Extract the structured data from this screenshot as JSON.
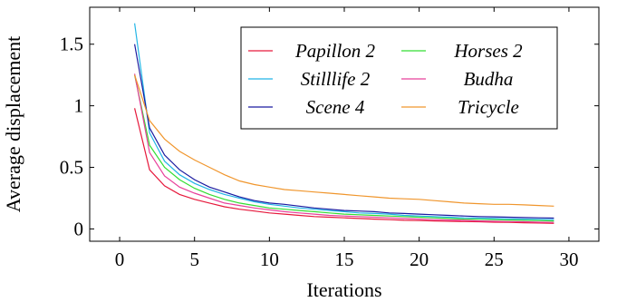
{
  "chart_data": {
    "type": "line",
    "xlabel": "Iterations",
    "ylabel": "Average displacement",
    "xlim": [
      -2,
      32
    ],
    "ylim": [
      -0.1,
      1.8
    ],
    "xticks": [
      0,
      5,
      10,
      15,
      20,
      25,
      30
    ],
    "yticks": [
      0,
      0.5,
      1,
      1.5
    ],
    "ytick_labels": [
      "0",
      "0.5",
      "1",
      "1.5"
    ],
    "grid": false,
    "legend_position": "top-right",
    "x": [
      1,
      2,
      3,
      4,
      5,
      6,
      7,
      8,
      9,
      10,
      11,
      12,
      13,
      14,
      15,
      16,
      17,
      18,
      19,
      20,
      21,
      22,
      23,
      24,
      25,
      26,
      27,
      28,
      29
    ],
    "series": [
      {
        "name": "Papillon 2",
        "color": "#e6193c",
        "values": [
          0.98,
          0.48,
          0.35,
          0.28,
          0.24,
          0.21,
          0.18,
          0.16,
          0.145,
          0.13,
          0.12,
          0.11,
          0.1,
          0.095,
          0.09,
          0.085,
          0.08,
          0.075,
          0.07,
          0.068,
          0.065,
          0.062,
          0.06,
          0.058,
          0.055,
          0.053,
          0.05,
          0.048,
          0.045
        ]
      },
      {
        "name": "Horses 2",
        "color": "#33dd33",
        "values": [
          1.25,
          0.68,
          0.5,
          0.4,
          0.33,
          0.28,
          0.24,
          0.21,
          0.19,
          0.17,
          0.16,
          0.15,
          0.14,
          0.13,
          0.12,
          0.115,
          0.11,
          0.105,
          0.1,
          0.095,
          0.09,
          0.085,
          0.08,
          0.078,
          0.075,
          0.072,
          0.07,
          0.068,
          0.065
        ]
      },
      {
        "name": "Stilllife 2",
        "color": "#22b5e6",
        "values": [
          1.67,
          0.78,
          0.55,
          0.44,
          0.37,
          0.32,
          0.28,
          0.25,
          0.22,
          0.2,
          0.185,
          0.17,
          0.16,
          0.15,
          0.14,
          0.13,
          0.125,
          0.12,
          0.11,
          0.105,
          0.1,
          0.095,
          0.09,
          0.088,
          0.085,
          0.082,
          0.08,
          0.078,
          0.075
        ]
      },
      {
        "name": "Budha",
        "color": "#e8409a",
        "values": [
          1.26,
          0.62,
          0.43,
          0.34,
          0.29,
          0.25,
          0.21,
          0.19,
          0.17,
          0.155,
          0.14,
          0.13,
          0.12,
          0.11,
          0.105,
          0.1,
          0.095,
          0.09,
          0.085,
          0.08,
          0.075,
          0.072,
          0.07,
          0.065,
          0.062,
          0.06,
          0.058,
          0.055,
          0.053
        ]
      },
      {
        "name": "Scene 4",
        "color": "#1a1aa0",
        "values": [
          1.5,
          0.82,
          0.6,
          0.48,
          0.4,
          0.34,
          0.3,
          0.26,
          0.23,
          0.21,
          0.2,
          0.185,
          0.17,
          0.16,
          0.15,
          0.145,
          0.14,
          0.13,
          0.125,
          0.12,
          0.115,
          0.11,
          0.105,
          0.1,
          0.098,
          0.095,
          0.092,
          0.09,
          0.088
        ]
      },
      {
        "name": "Tricycle",
        "color": "#f0962d",
        "values": [
          1.25,
          0.88,
          0.73,
          0.63,
          0.56,
          0.5,
          0.44,
          0.39,
          0.36,
          0.34,
          0.32,
          0.31,
          0.3,
          0.29,
          0.28,
          0.27,
          0.26,
          0.25,
          0.245,
          0.24,
          0.23,
          0.22,
          0.21,
          0.205,
          0.2,
          0.2,
          0.195,
          0.19,
          0.185
        ]
      }
    ]
  }
}
